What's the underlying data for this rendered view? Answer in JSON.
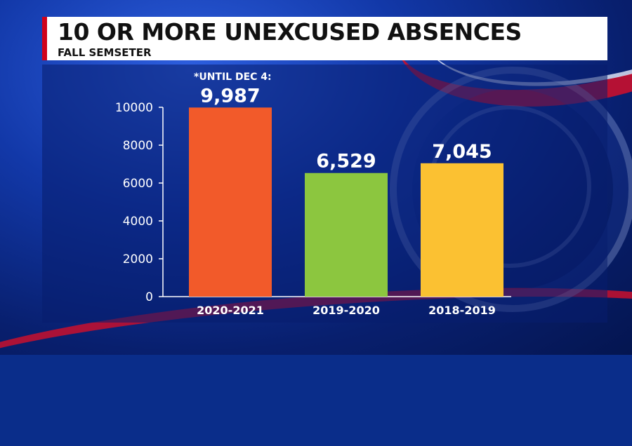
{
  "header": {
    "title": "10 OR MORE UNEXCUSED ABSENCES",
    "subtitle": "FALL SEMSETER"
  },
  "colors": {
    "title_accent": "#d0021b",
    "bar_2020_2021": "#f25a2a",
    "bar_2019_2020": "#8cc63f",
    "bar_2018_2019": "#fbc132"
  },
  "chart_data": {
    "type": "bar",
    "categories": [
      "2020-2021",
      "2019-2020",
      "2018-2019"
    ],
    "values": [
      9987,
      6529,
      7045
    ],
    "data_labels": [
      "9,987",
      "6,529",
      "7,045"
    ],
    "annotations": [
      {
        "category": "2020-2021",
        "text": "*UNTIL DEC 4:"
      }
    ],
    "yticks": [
      0,
      2000,
      4000,
      6000,
      8000,
      10000
    ],
    "ylim": [
      0,
      10000
    ],
    "grid": false,
    "legend": "none"
  }
}
